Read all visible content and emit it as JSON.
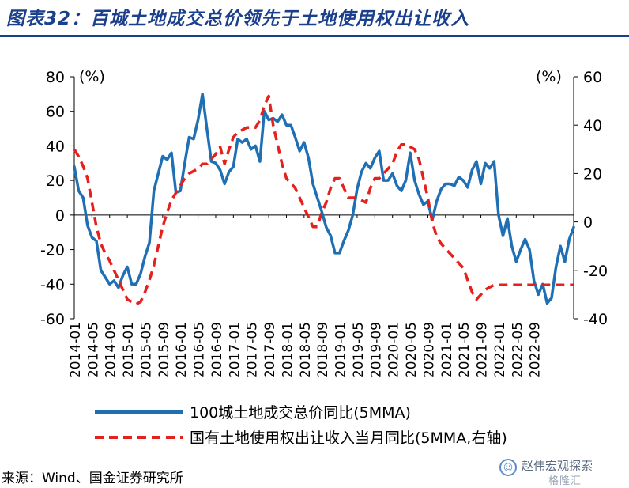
{
  "title": "图表32：百城土地成交总价领先于土地使用权出让收入",
  "source": "来源：Wind、国金证券研究所",
  "watermark": {
    "name": "赵伟宏观探索",
    "logo_text": "格隆汇",
    "icon": "wechat-icon"
  },
  "chart_data": {
    "type": "line",
    "left_unit": "(%)",
    "right_unit": "(%)",
    "left_ylim": [
      -60,
      80
    ],
    "left_ticks": [
      80,
      60,
      40,
      20,
      0,
      -20,
      -40,
      -60
    ],
    "right_ylim": [
      -40,
      60
    ],
    "right_ticks": [
      60,
      40,
      20,
      0,
      -20,
      -40
    ],
    "x_start": "2014-01",
    "x_tick_labels": [
      "2014-01",
      "2014-05",
      "2014-09",
      "2015-01",
      "2015-05",
      "2015-09",
      "2016-01",
      "2016-05",
      "2016-09",
      "2017-01",
      "2017-05",
      "2017-09",
      "2018-01",
      "2018-05",
      "2018-09",
      "2019-01",
      "2019-05",
      "2019-09",
      "2020-01",
      "2020-05",
      "2020-09",
      "2021-01",
      "2021-05",
      "2021-09",
      "2022-01",
      "2022-05",
      "2022-09"
    ],
    "grid": false,
    "legend_position": "bottom",
    "series": [
      {
        "name": "100城土地成交总价同比(5MMA)",
        "axis": "left",
        "color": "#1f6fb5",
        "style": "solid",
        "values": [
          28,
          14,
          10,
          -6,
          -13,
          -15,
          -32,
          -36,
          -40,
          -38,
          -42,
          -35,
          -30,
          -40,
          -40,
          -34,
          -24,
          -16,
          14,
          24,
          34,
          32,
          36,
          13,
          14,
          30,
          45,
          44,
          55,
          70,
          50,
          31,
          30,
          26,
          18,
          25,
          28,
          44,
          42,
          44,
          38,
          40,
          31,
          60,
          55,
          56,
          54,
          58,
          52,
          52,
          45,
          37,
          42,
          33,
          18,
          10,
          2,
          -7,
          -12,
          -22,
          -22,
          -15,
          -9,
          0,
          15,
          25,
          30,
          27,
          33,
          37,
          20,
          20,
          24,
          17,
          14,
          20,
          36,
          20,
          12,
          6,
          8,
          -3,
          8,
          15,
          18,
          18,
          17,
          22,
          20,
          16,
          26,
          31,
          18,
          30,
          27,
          31,
          0,
          -12,
          -2,
          -18,
          -27,
          -20,
          -14,
          -20,
          -38,
          -46,
          -40,
          -51,
          -48,
          -30,
          -18,
          -27,
          -14,
          -7
        ],
        "note": "values are monthly, one per month from x_start"
      },
      {
        "name": "国有土地使用权出让收入当月同比(5MMA,右轴)",
        "axis": "right",
        "color": "#e5211d",
        "style": "dashed",
        "values": [
          30,
          27,
          23,
          18,
          8,
          -2,
          -9,
          -13,
          -16,
          -20,
          -24,
          -28,
          -32,
          -33,
          -34,
          -33,
          -29,
          -24,
          -18,
          -10,
          -2,
          4,
          9,
          12,
          15,
          18,
          20,
          21,
          22,
          24,
          24,
          26,
          28,
          31,
          24,
          30,
          35,
          37,
          38,
          39,
          39,
          39,
          42,
          48,
          52,
          40,
          32,
          24,
          18,
          16,
          14,
          10,
          6,
          2,
          -2,
          -2,
          4,
          8,
          14,
          18,
          18,
          14,
          10,
          10,
          10,
          9,
          8,
          14,
          18,
          18,
          20,
          22,
          24,
          29,
          32,
          32,
          31,
          30,
          26,
          18,
          10,
          0,
          -6,
          -9,
          -11,
          -13,
          -15,
          -17,
          -19,
          -24,
          -29,
          -32,
          -30,
          -28,
          -27,
          -26,
          -26,
          -26,
          -26,
          -26,
          -26,
          -26,
          -26,
          -26,
          -26,
          -26,
          -26,
          -26,
          -26,
          -26,
          -26,
          -26,
          -26,
          -26
        ],
        "note": "values are monthly, one per month from x_start"
      }
    ]
  }
}
